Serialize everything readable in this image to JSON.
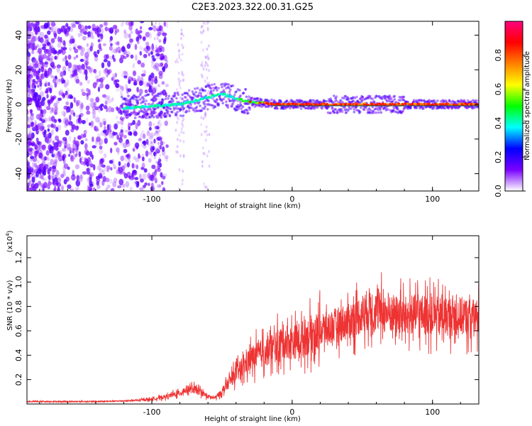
{
  "chart_data": [
    {
      "type": "heatmap",
      "title": "C2E3.2023.322.00.31.G25",
      "xlabel": "Height of straight line (km)",
      "ylabel": "Frequency (Hz)",
      "xlim": [
        -189,
        133
      ],
      "ylim": [
        -50,
        48
      ],
      "xticks": [
        -100,
        0,
        100
      ],
      "xtick_labels": [
        "-100",
        "0",
        "100"
      ],
      "yticks": [
        -40,
        -20,
        0,
        20,
        40
      ],
      "ytick_labels": [
        "-40",
        "-20",
        "0",
        "20",
        "40"
      ],
      "colorbar": {
        "label": "Normalized spectral amplitude",
        "range": [
          0,
          1
        ],
        "ticks": [
          0.0,
          0.2,
          0.4,
          0.6,
          0.8
        ],
        "tick_labels": [
          "0.0",
          "0.2",
          "0.4",
          "0.6",
          "0.8"
        ],
        "colors": [
          "#ffffff",
          "#7a00ff",
          "#0000ff",
          "#00ffff",
          "#00ff00",
          "#ffff00",
          "#ff8000",
          "#ff0000",
          "#ff0080"
        ]
      },
      "ridge": {
        "x": [
          -120,
          -100,
          -80,
          -65,
          -50,
          -42,
          -35,
          -25,
          -10,
          0,
          20,
          40,
          60,
          80,
          100,
          133
        ],
        "y": [
          -2,
          -1,
          0,
          3,
          6,
          4,
          2,
          1,
          0,
          0,
          0,
          0,
          0,
          0,
          0,
          0
        ]
      }
    },
    {
      "type": "line",
      "xlabel": "Height of straight line (km)",
      "ylabel": "SNR (10 * v/v)",
      "yscale_label": "(x10",
      "yscale_exp": "4",
      "yscale_close": ")",
      "xlim": [
        -189,
        133
      ],
      "ylim": [
        0,
        1.38
      ],
      "xticks": [
        -100,
        0,
        100
      ],
      "xtick_labels": [
        "-100",
        "0",
        "100"
      ],
      "yticks": [
        0.2,
        0.4,
        0.6,
        0.8,
        1.0,
        1.2
      ],
      "ytick_labels": [
        "0.2",
        "0.4",
        "0.6",
        "0.8",
        "1.0",
        "1.2"
      ],
      "color": "#ee3333",
      "series": [
        {
          "name": "SNR",
          "x": [
            -189,
            -160,
            -140,
            -120,
            -110,
            -100,
            -90,
            -80,
            -75,
            -70,
            -65,
            -60,
            -55,
            -50,
            -45,
            -40,
            -35,
            -30,
            -25,
            -20,
            -15,
            -10,
            -5,
            0,
            10,
            20,
            30,
            40,
            50,
            55,
            60,
            70,
            80,
            90,
            100,
            110,
            120,
            133
          ],
          "values": [
            0.02,
            0.02,
            0.02,
            0.025,
            0.03,
            0.04,
            0.06,
            0.09,
            0.12,
            0.12,
            0.1,
            0.06,
            0.05,
            0.1,
            0.18,
            0.25,
            0.3,
            0.37,
            0.4,
            0.42,
            0.45,
            0.48,
            0.52,
            0.5,
            0.55,
            0.6,
            0.64,
            0.68,
            0.74,
            0.78,
            0.76,
            0.74,
            0.72,
            0.74,
            0.72,
            0.72,
            0.72,
            0.7
          ]
        }
      ]
    }
  ]
}
